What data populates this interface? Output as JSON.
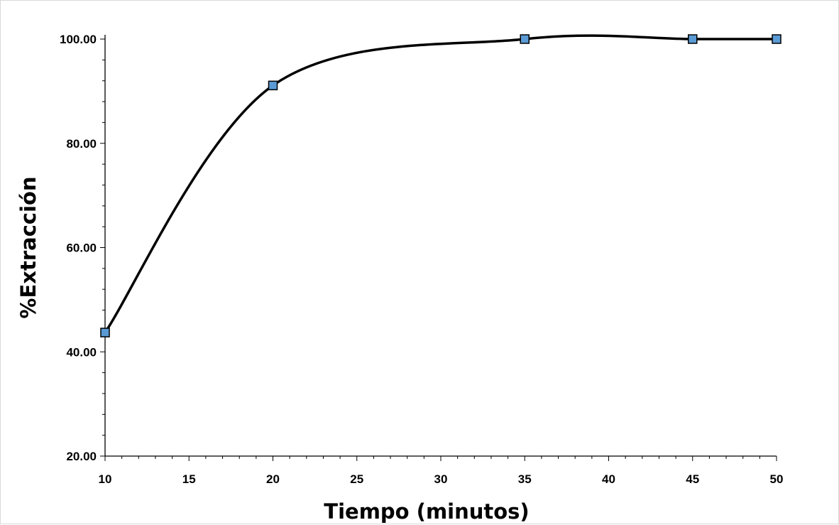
{
  "chart_data": {
    "type": "line",
    "title": "",
    "xlabel": "Tiempo (minutos)",
    "ylabel": "%Extracción",
    "x": [
      10,
      20,
      35,
      45,
      50
    ],
    "series": [
      {
        "values": [
          43.7,
          91.1,
          100.0,
          100.0,
          100.0
        ]
      }
    ],
    "xlim": [
      10,
      50
    ],
    "ylim": [
      20,
      100
    ],
    "x_ticks": [
      "10",
      "15",
      "20",
      "25",
      "30",
      "35",
      "40",
      "45",
      "50"
    ],
    "y_ticks": [
      "20.00",
      "40.00",
      "60.00",
      "80.00",
      "100.00"
    ],
    "smoothed_line": true,
    "grid": false,
    "legend": "none",
    "colors": {
      "line": "#000000",
      "marker_fill": "#5b9bd5",
      "marker_stroke": "#000000"
    }
  }
}
